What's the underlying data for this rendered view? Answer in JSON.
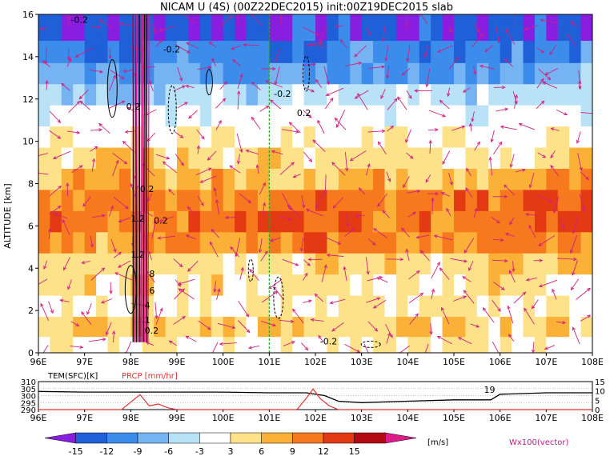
{
  "chart_data": [
    {
      "type": "heatmap",
      "title": "NICAM U (4S) (00Z22DEC2015) init:00Z19DEC2015 slab",
      "xlabel": "",
      "ylabel": "ALTITUDE [km]",
      "xlim": [
        96,
        108
      ],
      "ylim": [
        0,
        16
      ],
      "x_tick_labels": [
        "96E",
        "97E",
        "98E",
        "99E",
        "100E",
        "101E",
        "102E",
        "103E",
        "104E",
        "105E",
        "106E",
        "107E",
        "108E"
      ],
      "y_tick_labels": [
        "0",
        "2",
        "4",
        "6",
        "8",
        "10",
        "12",
        "14",
        "16"
      ],
      "colorbar": {
        "levels": [
          -15,
          -12,
          -9,
          -6,
          -3,
          3,
          6,
          9,
          12,
          15
        ],
        "labels": [
          "-15",
          "-12",
          "-9",
          "-6",
          "-3",
          "3",
          "6",
          "9",
          "12",
          "15"
        ],
        "unit": "[m/s]",
        "colors": [
          "#8a1ee0",
          "#1f5fd8",
          "#3c8cec",
          "#75b3f2",
          "#b9e2f7",
          "#ffffff",
          "#fde28a",
          "#fbb037",
          "#f7791d",
          "#e43a14",
          "#b30a13",
          "#e01a8a"
        ]
      },
      "bands": [
        {
          "alt": 15.3,
          "u": -14
        },
        {
          "alt": 14.2,
          "u": -11
        },
        {
          "alt": 13.2,
          "u": -8
        },
        {
          "alt": 12.2,
          "u": -5
        },
        {
          "alt": 11.2,
          "u": -1
        },
        {
          "alt": 10.2,
          "u": 2
        },
        {
          "alt": 9.2,
          "u": 5
        },
        {
          "alt": 8.2,
          "u": 7
        },
        {
          "alt": 7.2,
          "u": 10
        },
        {
          "alt": 6.2,
          "u": 11
        },
        {
          "alt": 5.2,
          "u": 8
        },
        {
          "alt": 4.2,
          "u": 5
        },
        {
          "alt": 3.2,
          "u": 4
        },
        {
          "alt": 2.2,
          "u": 3
        },
        {
          "alt": 1.2,
          "u": 5
        },
        {
          "alt": 0.3,
          "u": 3
        }
      ],
      "contour_labels": [
        "-0.2",
        "-0.2",
        "-0.2",
        "0.2",
        "0.2",
        "0.2",
        "1.2",
        "0.2",
        "1.2",
        "8",
        "6",
        "4",
        "1",
        "0.2",
        "-0.2"
      ],
      "marker_line_lon": 101,
      "vector_legend": "Wx100(vector)"
    },
    {
      "type": "line",
      "title": "",
      "xlim": [
        96,
        108
      ],
      "x_tick_labels": [
        "96E",
        "97E",
        "98E",
        "99E",
        "100E",
        "101E",
        "102E",
        "103E",
        "104E",
        "105E",
        "106E",
        "107E",
        "108E"
      ],
      "left_axis": {
        "label": "TEM(SFC)[K]",
        "ticks": [
          "290",
          "295",
          "300",
          "305",
          "310"
        ],
        "range": [
          290,
          310
        ]
      },
      "right_axis": {
        "label": "PRCP [mm/hr]",
        "ticks": [
          "0",
          "5",
          "10",
          "15"
        ],
        "range": [
          0,
          15
        ]
      },
      "series": [
        {
          "name": "TEM(SFC)[K]",
          "color": "#000000",
          "x": [
            96,
            97,
            98,
            99,
            100,
            101,
            101.8,
            102.2,
            102.5,
            103,
            104,
            105,
            105.8,
            106,
            107,
            108
          ],
          "y": [
            303,
            302.5,
            302.5,
            302.5,
            302.5,
            302,
            302,
            300,
            296,
            295,
            296,
            297,
            297,
            301,
            302,
            302
          ]
        },
        {
          "name": "PRCP [mm/hr]",
          "color": "#e03030",
          "x": [
            96,
            97.8,
            98.0,
            98.2,
            98.4,
            98.6,
            98.8,
            99.0,
            101.6,
            101.8,
            101.95,
            102.1,
            102.3,
            102.5,
            108
          ],
          "y": [
            0,
            0,
            4,
            8,
            2,
            3,
            1,
            0,
            0,
            6,
            11,
            6,
            2,
            0,
            0
          ]
        }
      ],
      "annotation": "19"
    }
  ]
}
